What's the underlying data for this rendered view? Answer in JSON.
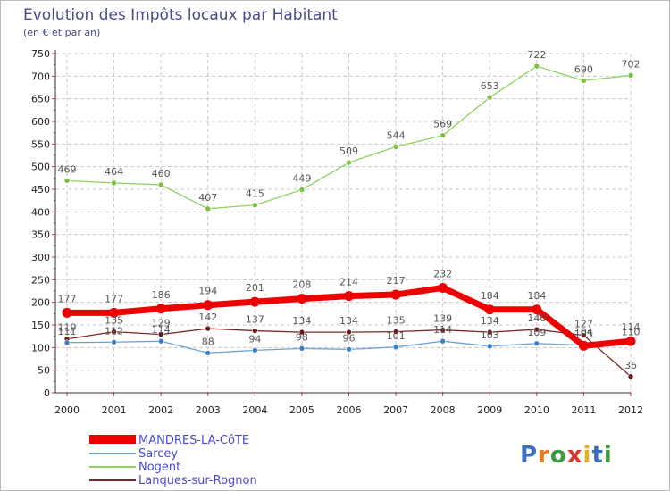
{
  "chart_data": {
    "type": "line",
    "title": "Evolution des Impôts locaux par Habitant",
    "subtitle": "(en € et par an)",
    "xlabel": "",
    "ylabel": "",
    "ylim": [
      0,
      750
    ],
    "yticks": [
      0,
      50,
      100,
      150,
      200,
      250,
      300,
      350,
      400,
      450,
      500,
      550,
      600,
      650,
      700,
      750
    ],
    "x": [
      "2000",
      "2001",
      "2002",
      "2003",
      "2004",
      "2005",
      "2006",
      "2007",
      "2008",
      "2009",
      "2010",
      "2011",
      "2012"
    ],
    "grid": true,
    "legend_position": "bottom-left",
    "series": [
      {
        "name": "Nogent",
        "color": "#90d060",
        "marker": "#7cc040",
        "values": [
          469,
          464,
          460,
          407,
          415,
          449,
          509,
          544,
          569,
          653,
          722,
          690,
          702
        ],
        "labels": [
          "469",
          "464",
          "460",
          "407",
          "415",
          "449",
          "509",
          "544",
          "569",
          "653",
          "722",
          "690",
          "702"
        ]
      },
      {
        "name": "Lanques-sur-Rognon",
        "color": "#7a2828",
        "marker": "#6a1a1a",
        "values": [
          119,
          135,
          129,
          142,
          137,
          134,
          134,
          135,
          139,
          134,
          140,
          127,
          36
        ],
        "labels": [
          "119",
          "135",
          "129",
          "142",
          "137",
          "134",
          "134",
          "135",
          "139",
          "134",
          "140",
          "127",
          "36"
        ]
      },
      {
        "name": "Sarcey",
        "color": "#6aa0d8",
        "marker": "#3a80c8",
        "values": [
          111,
          112,
          114,
          88,
          94,
          98,
          96,
          101,
          114,
          103,
          109,
          105,
          110
        ],
        "labels": [
          "111",
          "112",
          "114",
          "88",
          "94",
          "98",
          "96",
          "101",
          "114",
          "103",
          "109",
          "105",
          "110"
        ]
      },
      {
        "name": "MANDRES-LA-CôTE",
        "color": "#ee0000",
        "marker": "#ee0000",
        "values": [
          177,
          177,
          186,
          194,
          201,
          208,
          214,
          217,
          232,
          184,
          184,
          104,
          114
        ],
        "labels": [
          "177",
          "177",
          "186",
          "194",
          "201",
          "208",
          "214",
          "217",
          "232",
          "184",
          "184",
          "104",
          "114"
        ]
      }
    ],
    "legend": [
      {
        "label": "MANDRES-LA-CôTE",
        "color": "#ee0000"
      },
      {
        "label": "Sarcey",
        "color": "#6aa0d8"
      },
      {
        "label": "Nogent",
        "color": "#90d060"
      },
      {
        "label": "Lanques-sur-Rognon",
        "color": "#7a2828"
      }
    ]
  },
  "logo": {
    "letters": [
      "P",
      "r",
      "o",
      "x",
      "i",
      "t",
      "i"
    ],
    "colors": [
      "#3a6fc0",
      "#e87a20",
      "#3a9a40",
      "#d03a30",
      "#e8b020",
      "#3a6fc0",
      "#3a9a40"
    ]
  }
}
